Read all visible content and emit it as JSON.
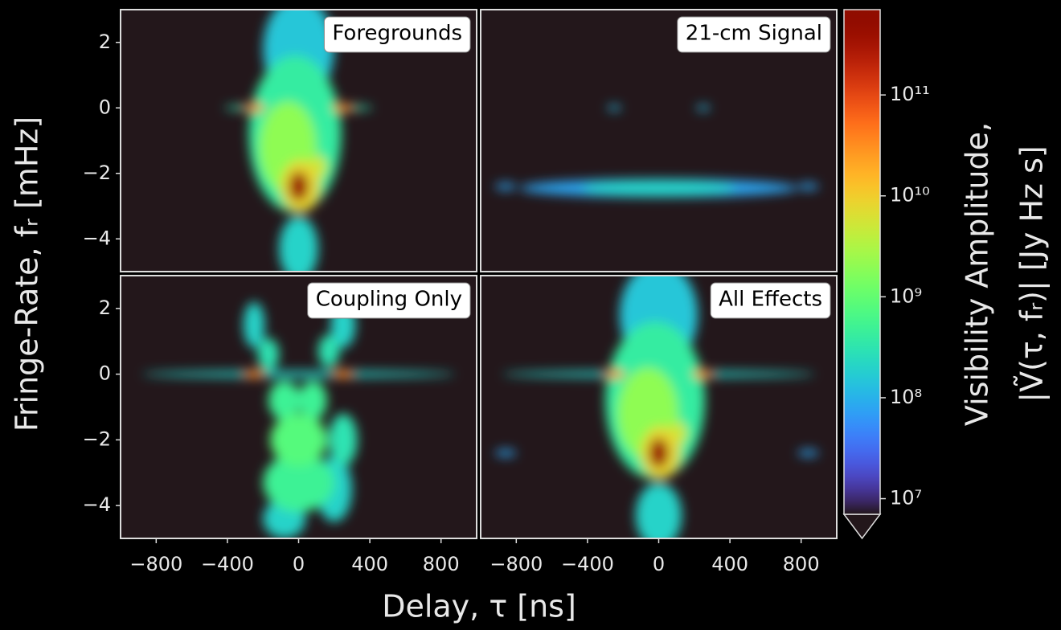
{
  "xlabel": "Delay, τ [ns]",
  "ylabel": "Fringe-Rate, fᵣ [mHz]",
  "colorbar": {
    "label": [
      "Visibility Amplitude,",
      "|Ṽ(τ, fᵣ)| [Jy Hz s]"
    ],
    "colormap": "turbo",
    "log_scale": true,
    "clim": [
      7000000,
      700000000000
    ],
    "ticks": [
      {
        "value": 10000000,
        "label": "10⁷"
      },
      {
        "value": 100000000,
        "label": "10⁸"
      },
      {
        "value": 1000000000,
        "label": "10⁹"
      },
      {
        "value": 10000000000,
        "label": "10¹⁰"
      },
      {
        "value": 100000000000,
        "label": "10¹¹"
      }
    ]
  },
  "chart_data": [
    {
      "type": "heatmap",
      "title": "Foregrounds",
      "xlim": [
        -1000,
        1000
      ],
      "ylim": [
        -5,
        3
      ],
      "yticks": [
        2,
        0,
        {
          "value": -2,
          "label": "−2"
        },
        {
          "value": -4,
          "label": "−4"
        }
      ],
      "features": [
        {
          "tau": 0,
          "fr": 1.8,
          "width": 200,
          "height": 1.6,
          "amplitude": 150000000
        },
        {
          "tau": 0,
          "fr": -4.3,
          "width": 110,
          "height": 1,
          "amplitude": 200000000
        },
        {
          "tau": -20,
          "fr": -0.8,
          "width": 260,
          "height": 2.4,
          "amplitude": 400000000
        },
        {
          "tau": 0,
          "fr": 0,
          "width": 420,
          "height": 0.12,
          "amplitude": 300000000
        },
        {
          "tau": -60,
          "fr": -1.2,
          "width": 160,
          "height": 1.4,
          "amplitude": 2000000000
        },
        {
          "tau": 10,
          "fr": -2.4,
          "width": 110,
          "height": 0.8,
          "amplitude": 8000000000
        },
        {
          "tau": 110,
          "fr": -1.8,
          "width": 50,
          "height": 0.35,
          "amplitude": 5000000000
        },
        {
          "tau": -250,
          "fr": 0,
          "width": 60,
          "height": 0.12,
          "amplitude": 40000000000
        },
        {
          "tau": 250,
          "fr": 0,
          "width": 60,
          "height": 0.12,
          "amplitude": 30000000000
        },
        {
          "tau": 0,
          "fr": -2.4,
          "width": 55,
          "height": 0.45,
          "amplitude": 400000000000
        }
      ]
    },
    {
      "type": "heatmap",
      "title": "21-cm Signal",
      "xlim": [
        -1000,
        1000
      ],
      "ylim": [
        -5,
        3
      ],
      "features": [
        {
          "tau": 0,
          "fr": -2.45,
          "width": 780,
          "height": 0.28,
          "amplitude": 80000000
        },
        {
          "tau": 0,
          "fr": -2.45,
          "width": 430,
          "height": 0.25,
          "amplitude": 200000000
        },
        {
          "tau": -860,
          "fr": -2.4,
          "width": 60,
          "height": 0.1,
          "amplitude": 80000000
        },
        {
          "tau": 840,
          "fr": -2.4,
          "width": 60,
          "height": 0.1,
          "amplitude": 80000000
        },
        {
          "tau": -250,
          "fr": 0,
          "width": 40,
          "height": 0.08,
          "amplitude": 120000000
        },
        {
          "tau": 250,
          "fr": 0,
          "width": 40,
          "height": 0.08,
          "amplitude": 120000000
        }
      ]
    },
    {
      "type": "heatmap",
      "title": "Coupling Only",
      "xlim": [
        -1000,
        1000
      ],
      "ylim": [
        -5,
        3
      ],
      "xticks": [
        {
          "value": -800,
          "label": "−800"
        },
        {
          "value": -400,
          "label": "−400"
        },
        0,
        400,
        800
      ],
      "yticks": [
        2,
        0,
        {
          "value": -2,
          "label": "−2"
        },
        {
          "value": -4,
          "label": "−4"
        }
      ],
      "features": [
        {
          "tau": -250,
          "fr": 1.5,
          "width": 60,
          "height": 0.7,
          "amplitude": 200000000
        },
        {
          "tau": -170,
          "fr": 0.6,
          "width": 60,
          "height": 0.5,
          "amplitude": 300000000
        },
        {
          "tau": -80,
          "fr": -0.8,
          "width": 90,
          "height": 0.6,
          "amplitude": 500000000
        },
        {
          "tau": 0,
          "fr": -2,
          "width": 160,
          "height": 0.8,
          "amplitude": 800000000
        },
        {
          "tau": 0,
          "fr": -3.3,
          "width": 200,
          "height": 0.9,
          "amplitude": 500000000
        },
        {
          "tau": -80,
          "fr": -4.4,
          "width": 120,
          "height": 0.6,
          "amplitude": 200000000
        },
        {
          "tau": 250,
          "fr": 1.5,
          "width": 70,
          "height": 0.7,
          "amplitude": 200000000
        },
        {
          "tau": 170,
          "fr": 0.7,
          "width": 60,
          "height": 0.5,
          "amplitude": 300000000
        },
        {
          "tau": 80,
          "fr": -0.8,
          "width": 80,
          "height": 0.6,
          "amplitude": 500000000
        },
        {
          "tau": 250,
          "fr": -2,
          "width": 80,
          "height": 0.8,
          "amplitude": 300000000
        },
        {
          "tau": 200,
          "fr": -3.5,
          "width": 100,
          "height": 1,
          "amplitude": 200000000
        },
        {
          "tau": 0,
          "fr": 0,
          "width": 880,
          "height": 0.1,
          "amplitude": 200000000
        },
        {
          "tau": -250,
          "fr": 0,
          "width": 60,
          "height": 0.12,
          "amplitude": 30000000000
        },
        {
          "tau": 250,
          "fr": 0,
          "width": 60,
          "height": 0.12,
          "amplitude": 30000000000
        }
      ]
    },
    {
      "type": "heatmap",
      "title": "All Effects",
      "xlim": [
        -1000,
        1000
      ],
      "ylim": [
        -5,
        3
      ],
      "xticks": [
        {
          "value": -800,
          "label": "−800"
        },
        {
          "value": -400,
          "label": "−400"
        },
        0,
        400,
        800
      ],
      "features": [
        {
          "tau": -860,
          "fr": -2.4,
          "width": 60,
          "height": 0.1,
          "amplitude": 80000000
        },
        {
          "tau": 840,
          "fr": -2.4,
          "width": 60,
          "height": 0.1,
          "amplitude": 80000000
        },
        {
          "tau": 0,
          "fr": 1.8,
          "width": 220,
          "height": 1.6,
          "amplitude": 150000000
        },
        {
          "tau": 0,
          "fr": -4.3,
          "width": 130,
          "height": 1,
          "amplitude": 200000000
        },
        {
          "tau": -20,
          "fr": -0.8,
          "width": 280,
          "height": 2.4,
          "amplitude": 400000000
        },
        {
          "tau": 0,
          "fr": 0,
          "width": 880,
          "height": 0.1,
          "amplitude": 200000000
        },
        {
          "tau": -60,
          "fr": -1.2,
          "width": 170,
          "height": 1.4,
          "amplitude": 2000000000
        },
        {
          "tau": 10,
          "fr": -2.4,
          "width": 110,
          "height": 0.8,
          "amplitude": 8000000000
        },
        {
          "tau": 110,
          "fr": -1.8,
          "width": 50,
          "height": 0.35,
          "amplitude": 5000000000
        },
        {
          "tau": -250,
          "fr": 0,
          "width": 60,
          "height": 0.12,
          "amplitude": 40000000000
        },
        {
          "tau": 250,
          "fr": 0,
          "width": 60,
          "height": 0.12,
          "amplitude": 30000000000
        },
        {
          "tau": 0,
          "fr": -2.4,
          "width": 55,
          "height": 0.45,
          "amplitude": 400000000000
        }
      ]
    }
  ]
}
